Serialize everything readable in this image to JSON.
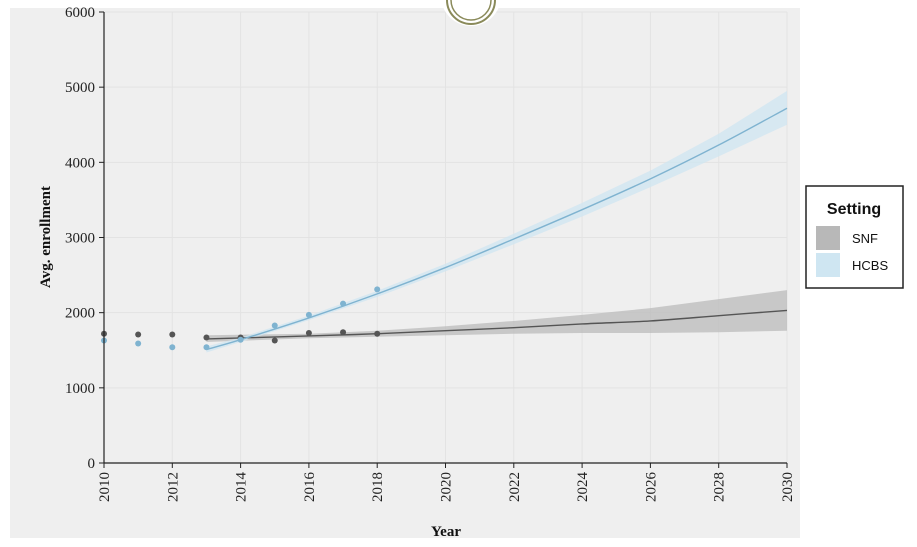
{
  "chart_data": {
    "type": "line",
    "xlabel": "Year",
    "ylabel": "Avg. enrollment",
    "xlim": [
      2010,
      2030
    ],
    "ylim": [
      0,
      6000
    ],
    "x_ticks": [
      "2010",
      "2012",
      "2014",
      "2016",
      "2018",
      "2020",
      "2022",
      "2024",
      "2026",
      "2028",
      "2030"
    ],
    "y_ticks": [
      "0",
      "1000",
      "2000",
      "3000",
      "4000",
      "5000",
      "6000"
    ],
    "grid": true,
    "legend": {
      "title": "Setting",
      "placement": "right"
    },
    "series": [
      {
        "name": "SNF",
        "color": "#555555",
        "band_color": "#b8b8b8",
        "points": [
          {
            "x": 2010,
            "y": 1720
          },
          {
            "x": 2011,
            "y": 1710
          },
          {
            "x": 2012,
            "y": 1710
          },
          {
            "x": 2013,
            "y": 1670
          },
          {
            "x": 2014,
            "y": 1670
          },
          {
            "x": 2015,
            "y": 1630
          },
          {
            "x": 2016,
            "y": 1730
          },
          {
            "x": 2017,
            "y": 1740
          },
          {
            "x": 2018,
            "y": 1720
          }
        ],
        "fit": [
          {
            "x": 2013,
            "y": 1650
          },
          {
            "x": 2016,
            "y": 1690
          },
          {
            "x": 2018,
            "y": 1720
          },
          {
            "x": 2020,
            "y": 1760
          },
          {
            "x": 2022,
            "y": 1800
          },
          {
            "x": 2024,
            "y": 1850
          },
          {
            "x": 2026,
            "y": 1890
          },
          {
            "x": 2028,
            "y": 1960
          },
          {
            "x": 2030,
            "y": 2030
          }
        ],
        "fit_lower": [
          {
            "x": 2013,
            "y": 1610
          },
          {
            "x": 2016,
            "y": 1660
          },
          {
            "x": 2018,
            "y": 1680
          },
          {
            "x": 2020,
            "y": 1700
          },
          {
            "x": 2022,
            "y": 1720
          },
          {
            "x": 2024,
            "y": 1730
          },
          {
            "x": 2026,
            "y": 1730
          },
          {
            "x": 2028,
            "y": 1740
          },
          {
            "x": 2030,
            "y": 1760
          }
        ],
        "fit_upper": [
          {
            "x": 2013,
            "y": 1700
          },
          {
            "x": 2016,
            "y": 1720
          },
          {
            "x": 2018,
            "y": 1760
          },
          {
            "x": 2020,
            "y": 1820
          },
          {
            "x": 2022,
            "y": 1890
          },
          {
            "x": 2024,
            "y": 1970
          },
          {
            "x": 2026,
            "y": 2060
          },
          {
            "x": 2028,
            "y": 2180
          },
          {
            "x": 2030,
            "y": 2300
          }
        ]
      },
      {
        "name": "HCBS",
        "color": "#7fb3d0",
        "band_color": "#cfe6f2",
        "points": [
          {
            "x": 2010,
            "y": 1630
          },
          {
            "x": 2011,
            "y": 1590
          },
          {
            "x": 2012,
            "y": 1540
          },
          {
            "x": 2013,
            "y": 1540
          },
          {
            "x": 2014,
            "y": 1640
          },
          {
            "x": 2015,
            "y": 1830
          },
          {
            "x": 2016,
            "y": 1970
          },
          {
            "x": 2017,
            "y": 2120
          },
          {
            "x": 2018,
            "y": 2310
          }
        ],
        "fit": [
          {
            "x": 2013,
            "y": 1510
          },
          {
            "x": 2014,
            "y": 1640
          },
          {
            "x": 2016,
            "y": 1930
          },
          {
            "x": 2018,
            "y": 2250
          },
          {
            "x": 2020,
            "y": 2600
          },
          {
            "x": 2022,
            "y": 2980
          },
          {
            "x": 2024,
            "y": 3370
          },
          {
            "x": 2026,
            "y": 3780
          },
          {
            "x": 2028,
            "y": 4230
          },
          {
            "x": 2030,
            "y": 4720
          }
        ],
        "fit_lower": [
          {
            "x": 2013,
            "y": 1470
          },
          {
            "x": 2014,
            "y": 1610
          },
          {
            "x": 2016,
            "y": 1900
          },
          {
            "x": 2018,
            "y": 2210
          },
          {
            "x": 2020,
            "y": 2550
          },
          {
            "x": 2022,
            "y": 2910
          },
          {
            "x": 2024,
            "y": 3280
          },
          {
            "x": 2026,
            "y": 3670
          },
          {
            "x": 2028,
            "y": 4080
          },
          {
            "x": 2030,
            "y": 4500
          }
        ],
        "fit_upper": [
          {
            "x": 2013,
            "y": 1550
          },
          {
            "x": 2014,
            "y": 1670
          },
          {
            "x": 2016,
            "y": 1960
          },
          {
            "x": 2018,
            "y": 2290
          },
          {
            "x": 2020,
            "y": 2650
          },
          {
            "x": 2022,
            "y": 3050
          },
          {
            "x": 2024,
            "y": 3460
          },
          {
            "x": 2026,
            "y": 3890
          },
          {
            "x": 2028,
            "y": 4380
          },
          {
            "x": 2030,
            "y": 4950
          }
        ]
      }
    ]
  }
}
